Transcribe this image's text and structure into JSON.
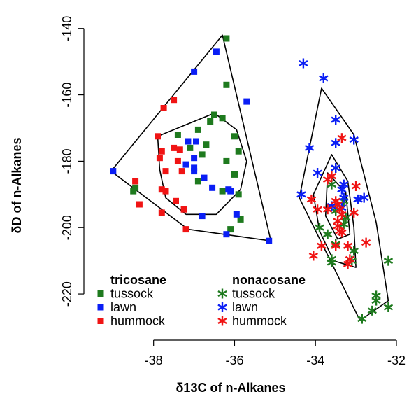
{
  "chart_data": {
    "type": "scatter",
    "xlabel": "δ13C of n-Alkanes",
    "ylabel": "δD of n-Alkanes",
    "xlim": [
      -39.1,
      -32.0
    ],
    "ylim": [
      -228,
      -139
    ],
    "xticks": [
      -38,
      -36,
      -34,
      -32
    ],
    "yticks": [
      -140,
      -160,
      -180,
      -200,
      -220
    ],
    "grid": false,
    "legend": {
      "placement": "bottom-left",
      "groups": [
        {
          "title": "tricosane",
          "marker": "square",
          "entries": [
            "tussock",
            "lawn",
            "hummock"
          ]
        },
        {
          "title": "nonacosane",
          "marker": "star",
          "entries": [
            "tussock",
            "lawn",
            "hummock"
          ]
        }
      ]
    },
    "colors": {
      "tussock": "#1e7a1e",
      "lawn": "#0a1ef5",
      "hummock": "#f01414",
      "hull": "#000000"
    },
    "series": [
      {
        "name": "tussock",
        "group": "tricosane",
        "marker": "square",
        "color": "#1e7a1e",
        "points": [
          [
            -36.2,
            -143
          ],
          [
            -36.2,
            -157
          ],
          [
            -36.5,
            -166
          ],
          [
            -36.0,
            -172.5
          ],
          [
            -36.9,
            -170.5
          ],
          [
            -36.6,
            -168
          ],
          [
            -37.1,
            -176
          ],
          [
            -37.4,
            -172
          ],
          [
            -36.3,
            -167
          ],
          [
            -35.9,
            -177
          ],
          [
            -36.7,
            -175
          ],
          [
            -36.0,
            -184
          ],
          [
            -36.8,
            -178
          ],
          [
            -36.2,
            -180
          ],
          [
            -36.9,
            -186
          ],
          [
            -36.3,
            -189
          ],
          [
            -35.9,
            -190
          ],
          [
            -35.85,
            -197.5
          ],
          [
            -36.1,
            -200.5
          ],
          [
            -38.5,
            -189
          ],
          [
            -38.45,
            -188
          ]
        ]
      },
      {
        "name": "lawn",
        "group": "tricosane",
        "marker": "square",
        "color": "#0a1ef5",
        "points": [
          [
            -36.45,
            -147
          ],
          [
            -37.0,
            -153
          ],
          [
            -35.7,
            -162
          ],
          [
            -37.0,
            -182
          ],
          [
            -37.2,
            -181
          ],
          [
            -37.15,
            -174
          ],
          [
            -36.95,
            -174
          ],
          [
            -37.0,
            -179
          ],
          [
            -37.0,
            -183
          ],
          [
            -36.75,
            -185
          ],
          [
            -36.55,
            -188
          ],
          [
            -36.15,
            -188.5
          ],
          [
            -36.1,
            -189
          ],
          [
            -35.95,
            -196
          ],
          [
            -36.2,
            -202
          ],
          [
            -36.8,
            -196.5
          ],
          [
            -35.15,
            -204
          ],
          [
            -39.0,
            -183
          ]
        ]
      },
      {
        "name": "hummock",
        "group": "tricosane",
        "marker": "square",
        "color": "#f01414",
        "points": [
          [
            -37.75,
            -164
          ],
          [
            -37.5,
            -161.5
          ],
          [
            -37.9,
            -172.5
          ],
          [
            -37.8,
            -177
          ],
          [
            -37.85,
            -179
          ],
          [
            -37.5,
            -176
          ],
          [
            -37.35,
            -176.5
          ],
          [
            -37.7,
            -183
          ],
          [
            -37.4,
            -180
          ],
          [
            -37.3,
            -183
          ],
          [
            -38.45,
            -186
          ],
          [
            -37.8,
            -188.5
          ],
          [
            -37.7,
            -189
          ],
          [
            -37.45,
            -192
          ],
          [
            -37.25,
            -194.5
          ],
          [
            -38.35,
            -193
          ],
          [
            -37.8,
            -195.5
          ],
          [
            -37.2,
            -200.5
          ]
        ]
      },
      {
        "name": "tussock",
        "group": "nonacosane",
        "marker": "star",
        "color": "#1e7a1e",
        "points": [
          [
            -33.5,
            -182
          ],
          [
            -33.6,
            -187
          ],
          [
            -33.3,
            -192
          ],
          [
            -33.5,
            -195
          ],
          [
            -33.25,
            -197
          ],
          [
            -33.3,
            -199
          ],
          [
            -33.9,
            -200
          ],
          [
            -33.7,
            -202
          ],
          [
            -33.5,
            -205
          ],
          [
            -33.05,
            -207
          ],
          [
            -33.1,
            -210
          ],
          [
            -33.6,
            -209.5
          ],
          [
            -33.6,
            -210.5
          ],
          [
            -32.2,
            -210
          ],
          [
            -32.5,
            -220.5
          ],
          [
            -32.5,
            -222
          ],
          [
            -32.6,
            -225
          ],
          [
            -32.2,
            -224
          ],
          [
            -32.85,
            -227.5
          ]
        ]
      },
      {
        "name": "lawn",
        "group": "nonacosane",
        "marker": "star",
        "color": "#0a1ef5",
        "points": [
          [
            -34.3,
            -150.5
          ],
          [
            -33.8,
            -155
          ],
          [
            -33.5,
            -167.5
          ],
          [
            -33.05,
            -173.5
          ],
          [
            -33.5,
            -174.5
          ],
          [
            -34.15,
            -176
          ],
          [
            -33.95,
            -183.5
          ],
          [
            -33.5,
            -182
          ],
          [
            -33.3,
            -187
          ],
          [
            -33.35,
            -188.5
          ],
          [
            -33.3,
            -191
          ],
          [
            -32.8,
            -191
          ],
          [
            -32.95,
            -191.5
          ],
          [
            -34.35,
            -190
          ],
          [
            -33.6,
            -193.5
          ],
          [
            -33.35,
            -194
          ]
        ]
      },
      {
        "name": "hummock",
        "group": "nonacosane",
        "marker": "star",
        "color": "#f01414",
        "points": [
          [
            -33.35,
            -173
          ],
          [
            -33.6,
            -184.5
          ],
          [
            -33.7,
            -185.5
          ],
          [
            -33.0,
            -187.5
          ],
          [
            -34.1,
            -191.5
          ],
          [
            -33.5,
            -192
          ],
          [
            -33.45,
            -193
          ],
          [
            -33.4,
            -194.5
          ],
          [
            -33.35,
            -196
          ],
          [
            -33.95,
            -194.5
          ],
          [
            -33.7,
            -194.5
          ],
          [
            -33.05,
            -195.5
          ],
          [
            -33.45,
            -198
          ],
          [
            -33.45,
            -199.5
          ],
          [
            -33.4,
            -201
          ],
          [
            -33.35,
            -201.5
          ],
          [
            -33.2,
            -205.5
          ],
          [
            -33.5,
            -205.5
          ],
          [
            -33.85,
            -205.5
          ],
          [
            -32.75,
            -204.5
          ],
          [
            -34.05,
            -208.5
          ],
          [
            -33.15,
            -209.5
          ],
          [
            -33.2,
            -211
          ]
        ]
      }
    ],
    "hulls": [
      {
        "group": "tricosane",
        "level": "outer",
        "points": [
          [
            -39.05,
            -183
          ],
          [
            -36.3,
            -142
          ],
          [
            -35.1,
            -204
          ],
          [
            -37.15,
            -200.5
          ]
        ]
      },
      {
        "group": "tricosane",
        "level": "inner",
        "points": [
          [
            -37.9,
            -172.5
          ],
          [
            -36.5,
            -165.5
          ],
          [
            -35.95,
            -170.5
          ],
          [
            -35.7,
            -180
          ],
          [
            -35.85,
            -188.5
          ],
          [
            -36.45,
            -196
          ],
          [
            -37.2,
            -196
          ],
          [
            -37.7,
            -191
          ],
          [
            -37.85,
            -182.5
          ]
        ]
      },
      {
        "group": "nonacosane",
        "level": "outer",
        "points": [
          [
            -33.85,
            -158
          ],
          [
            -33.05,
            -172
          ],
          [
            -32.5,
            -198.5
          ],
          [
            -32.2,
            -222
          ],
          [
            -32.9,
            -228
          ],
          [
            -34.4,
            -191
          ]
        ]
      },
      {
        "group": "nonacosane",
        "level": "inner",
        "points": [
          [
            -33.6,
            -178
          ],
          [
            -33.2,
            -186
          ],
          [
            -33.05,
            -200
          ],
          [
            -33.0,
            -212
          ],
          [
            -33.55,
            -210
          ],
          [
            -33.9,
            -201
          ],
          [
            -34.05,
            -190
          ]
        ]
      },
      {
        "group": "nonacosane",
        "level": "innermost",
        "points": [
          [
            -33.7,
            -183.5
          ],
          [
            -33.25,
            -189.5
          ],
          [
            -33.15,
            -202
          ],
          [
            -33.45,
            -203.5
          ],
          [
            -33.75,
            -196.5
          ]
        ]
      }
    ]
  }
}
